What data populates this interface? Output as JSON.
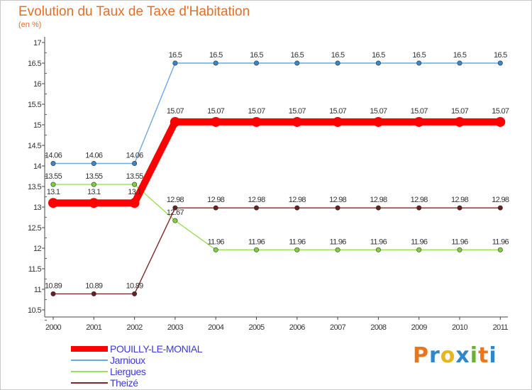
{
  "title": "Evolution du Taux de Taxe d'Habitation",
  "subtitle": "(en %)",
  "logo": {
    "text": "Proxiti",
    "colors": [
      "#e8761c",
      "#2f87c9",
      "#e8b51c",
      "#2f87c9",
      "#6ab033",
      "#e8761c",
      "#2f87c9"
    ]
  },
  "chart_data": {
    "type": "line",
    "title": "Evolution du Taux de Taxe d'Habitation",
    "ylabel": "(en %)",
    "xlabel": "",
    "x": [
      "2000",
      "2001",
      "2002",
      "2003",
      "2004",
      "2005",
      "2006",
      "2007",
      "2008",
      "2009",
      "2010",
      "2011"
    ],
    "yticks": [
      "10.5",
      "11",
      "11.5",
      "12",
      "12.5",
      "13",
      "13.5",
      "14",
      "14.5",
      "15",
      "15.5",
      "16",
      "16.5",
      "17"
    ],
    "ylim": [
      10.5,
      17
    ],
    "grid": false,
    "legend_position": "bottom-left",
    "series": [
      {
        "name": "POUILLY-LE-MONIAL",
        "color": "#ff0000",
        "emphasis": true,
        "values": [
          13.1,
          13.1,
          13.1,
          15.07,
          15.07,
          15.07,
          15.07,
          15.07,
          15.07,
          15.07,
          15.07,
          15.07
        ],
        "labels": [
          "13.1",
          "13.1",
          "13.1",
          "15.07",
          "15.07",
          "15.07",
          "15.07",
          "15.07",
          "15.07",
          "15.07",
          "15.07",
          "15.07"
        ]
      },
      {
        "name": "Jarnioux",
        "color": "#6fa8dc",
        "marker": "#3a87c8",
        "values": [
          14.06,
          14.06,
          14.06,
          16.5,
          16.5,
          16.5,
          16.5,
          16.5,
          16.5,
          16.5,
          16.5,
          16.5
        ],
        "labels": [
          "14.06",
          "14.06",
          "14.06",
          "16.5",
          "16.5",
          "16.5",
          "16.5",
          "16.5",
          "16.5",
          "16.5",
          "16.5",
          "16.5"
        ]
      },
      {
        "name": "Liergues",
        "color": "#9ae05a",
        "marker": "#7fd03a",
        "values": [
          13.55,
          13.55,
          13.55,
          12.67,
          11.96,
          11.96,
          11.96,
          11.96,
          11.96,
          11.96,
          11.96,
          11.96
        ],
        "labels": [
          "13.55",
          "13.55",
          "13.55",
          "12.67",
          "11.96",
          "11.96",
          "11.96",
          "11.96",
          "11.96",
          "11.96",
          "11.96",
          "11.96"
        ]
      },
      {
        "name": "Theizé",
        "color": "#7a2a2a",
        "marker": "#6a1e1e",
        "values": [
          10.89,
          10.89,
          10.89,
          12.98,
          12.98,
          12.98,
          12.98,
          12.98,
          12.98,
          12.98,
          12.98,
          12.98
        ],
        "labels": [
          "10.89",
          "10.89",
          "10.89",
          "12.98",
          "12.98",
          "12.98",
          "12.98",
          "12.98",
          "12.98",
          "12.98",
          "12.98",
          "12.98"
        ]
      }
    ]
  }
}
